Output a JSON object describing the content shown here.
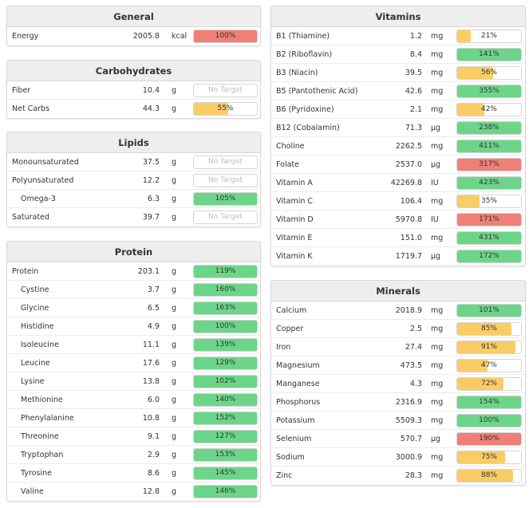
{
  "colors": {
    "green": "#6dd58a",
    "yellow": "#f9cc66",
    "red": "#ef8078",
    "none": "#ffffff"
  },
  "panels": [
    {
      "id": "general",
      "title": "General",
      "side": "left",
      "rows": [
        {
          "name": "Energy",
          "amount": "2005.8",
          "unit": "kcal",
          "pct": "100%",
          "fill": 1.0,
          "color": "red"
        }
      ]
    },
    {
      "id": "carbohydrates",
      "title": "Carbohydrates",
      "side": "left",
      "rows": [
        {
          "name": "Fiber",
          "amount": "10.4",
          "unit": "g",
          "pct": "No Target",
          "fill": 0,
          "color": "none"
        },
        {
          "name": "Net Carbs",
          "amount": "44.3",
          "unit": "g",
          "pct": "55%",
          "fill": 0.55,
          "color": "yellow"
        }
      ]
    },
    {
      "id": "lipids",
      "title": "Lipids",
      "side": "left",
      "rows": [
        {
          "name": "Monounsaturated",
          "amount": "37.5",
          "unit": "g",
          "pct": "No Target",
          "fill": 0,
          "color": "none"
        },
        {
          "name": "Polyunsaturated",
          "amount": "12.2",
          "unit": "g",
          "pct": "No Target",
          "fill": 0,
          "color": "none"
        },
        {
          "name": "Omega-3",
          "amount": "6.3",
          "unit": "g",
          "pct": "105%",
          "fill": 1.0,
          "color": "green",
          "indent": true
        },
        {
          "name": "Saturated",
          "amount": "39.7",
          "unit": "g",
          "pct": "No Target",
          "fill": 0,
          "color": "none"
        }
      ]
    },
    {
      "id": "protein",
      "title": "Protein",
      "side": "left",
      "rows": [
        {
          "name": "Protein",
          "amount": "203.1",
          "unit": "g",
          "pct": "119%",
          "fill": 1.0,
          "color": "green"
        },
        {
          "name": "Cystine",
          "amount": "3.7",
          "unit": "g",
          "pct": "160%",
          "fill": 1.0,
          "color": "green",
          "indent": true
        },
        {
          "name": "Glycine",
          "amount": "6.5",
          "unit": "g",
          "pct": "163%",
          "fill": 1.0,
          "color": "green",
          "indent": true
        },
        {
          "name": "Histidine",
          "amount": "4.9",
          "unit": "g",
          "pct": "100%",
          "fill": 1.0,
          "color": "green",
          "indent": true
        },
        {
          "name": "Isoleucine",
          "amount": "11.1",
          "unit": "g",
          "pct": "139%",
          "fill": 1.0,
          "color": "green",
          "indent": true
        },
        {
          "name": "Leucine",
          "amount": "17.6",
          "unit": "g",
          "pct": "129%",
          "fill": 1.0,
          "color": "green",
          "indent": true
        },
        {
          "name": "Lysine",
          "amount": "13.8",
          "unit": "g",
          "pct": "102%",
          "fill": 1.0,
          "color": "green",
          "indent": true
        },
        {
          "name": "Methionine",
          "amount": "6.0",
          "unit": "g",
          "pct": "140%",
          "fill": 1.0,
          "color": "green",
          "indent": true
        },
        {
          "name": "Phenylalanine",
          "amount": "10.8",
          "unit": "g",
          "pct": "152%",
          "fill": 1.0,
          "color": "green",
          "indent": true
        },
        {
          "name": "Threonine",
          "amount": "9.1",
          "unit": "g",
          "pct": "127%",
          "fill": 1.0,
          "color": "green",
          "indent": true
        },
        {
          "name": "Tryptophan",
          "amount": "2.9",
          "unit": "g",
          "pct": "153%",
          "fill": 1.0,
          "color": "green",
          "indent": true
        },
        {
          "name": "Tyrosine",
          "amount": "8.6",
          "unit": "g",
          "pct": "145%",
          "fill": 1.0,
          "color": "green",
          "indent": true
        },
        {
          "name": "Valine",
          "amount": "12.8",
          "unit": "g",
          "pct": "146%",
          "fill": 1.0,
          "color": "green",
          "indent": true
        }
      ]
    },
    {
      "id": "vitamins",
      "title": "Vitamins",
      "side": "right",
      "rows": [
        {
          "name": "B1 (Thiamine)",
          "amount": "1.2",
          "unit": "mg",
          "pct": "21%",
          "fill": 0.21,
          "color": "yellow"
        },
        {
          "name": "B2 (Riboflavin)",
          "amount": "8.4",
          "unit": "mg",
          "pct": "141%",
          "fill": 1.0,
          "color": "green"
        },
        {
          "name": "B3 (Niacin)",
          "amount": "39.5",
          "unit": "mg",
          "pct": "56%",
          "fill": 0.56,
          "color": "yellow"
        },
        {
          "name": "B5 (Pantothenic Acid)",
          "amount": "42.6",
          "unit": "mg",
          "pct": "355%",
          "fill": 1.0,
          "color": "green"
        },
        {
          "name": "B6 (Pyridoxine)",
          "amount": "2.1",
          "unit": "mg",
          "pct": "42%",
          "fill": 0.42,
          "color": "yellow"
        },
        {
          "name": "B12 (Cobalamin)",
          "amount": "71.3",
          "unit": "μg",
          "pct": "238%",
          "fill": 1.0,
          "color": "green"
        },
        {
          "name": "Choline",
          "amount": "2262.5",
          "unit": "mg",
          "pct": "411%",
          "fill": 1.0,
          "color": "green"
        },
        {
          "name": "Folate",
          "amount": "2537.0",
          "unit": "μg",
          "pct": "317%",
          "fill": 1.0,
          "color": "red"
        },
        {
          "name": "Vitamin A",
          "amount": "42269.8",
          "unit": "IU",
          "pct": "423%",
          "fill": 1.0,
          "color": "green"
        },
        {
          "name": "Vitamin C",
          "amount": "106.4",
          "unit": "mg",
          "pct": "35%",
          "fill": 0.35,
          "color": "yellow"
        },
        {
          "name": "Vitamin D",
          "amount": "5970.8",
          "unit": "IU",
          "pct": "171%",
          "fill": 1.0,
          "color": "red"
        },
        {
          "name": "Vitamin E",
          "amount": "151.0",
          "unit": "mg",
          "pct": "431%",
          "fill": 1.0,
          "color": "green"
        },
        {
          "name": "Vitamin K",
          "amount": "1719.7",
          "unit": "μg",
          "pct": "172%",
          "fill": 1.0,
          "color": "green"
        }
      ]
    },
    {
      "id": "minerals",
      "title": "Minerals",
      "side": "right",
      "rows": [
        {
          "name": "Calcium",
          "amount": "2018.9",
          "unit": "mg",
          "pct": "101%",
          "fill": 1.0,
          "color": "green"
        },
        {
          "name": "Copper",
          "amount": "2.5",
          "unit": "mg",
          "pct": "85%",
          "fill": 0.85,
          "color": "yellow"
        },
        {
          "name": "Iron",
          "amount": "27.4",
          "unit": "mg",
          "pct": "91%",
          "fill": 0.91,
          "color": "yellow"
        },
        {
          "name": "Magnesium",
          "amount": "473.5",
          "unit": "mg",
          "pct": "47%",
          "fill": 0.47,
          "color": "yellow"
        },
        {
          "name": "Manganese",
          "amount": "4.3",
          "unit": "mg",
          "pct": "72%",
          "fill": 0.72,
          "color": "yellow"
        },
        {
          "name": "Phosphorus",
          "amount": "2316.9",
          "unit": "mg",
          "pct": "154%",
          "fill": 1.0,
          "color": "green"
        },
        {
          "name": "Potassium",
          "amount": "5509.3",
          "unit": "mg",
          "pct": "100%",
          "fill": 1.0,
          "color": "green"
        },
        {
          "name": "Selenium",
          "amount": "570.7",
          "unit": "μg",
          "pct": "190%",
          "fill": 1.0,
          "color": "red"
        },
        {
          "name": "Sodium",
          "amount": "3000.9",
          "unit": "mg",
          "pct": "75%",
          "fill": 0.75,
          "color": "yellow"
        },
        {
          "name": "Zinc",
          "amount": "28.3",
          "unit": "mg",
          "pct": "88%",
          "fill": 0.88,
          "color": "yellow"
        }
      ]
    }
  ]
}
